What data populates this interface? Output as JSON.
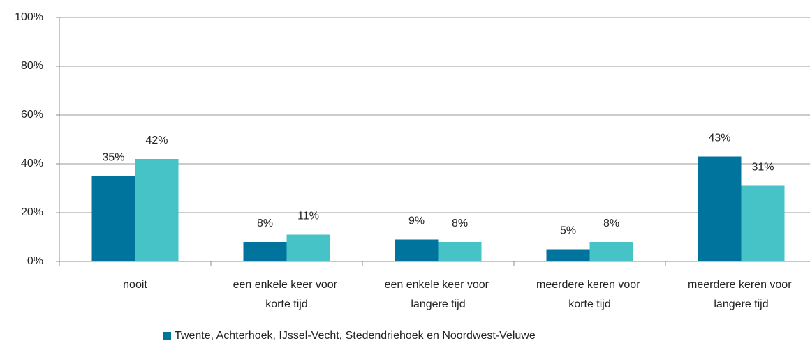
{
  "chart_data": {
    "type": "bar",
    "categories": [
      "nooit",
      "een enkele keer voor korte tijd",
      "een enkele keer voor langere tijd",
      "meerdere keren voor korte tijd",
      "meerdere keren voor langere tijd"
    ],
    "series": [
      {
        "name": "Twente, Achterhoek, IJssel-Vecht, Stedendriehoek en Noordwest-Veluwe",
        "color": "#00749c",
        "values": [
          35,
          8,
          9,
          5,
          43
        ],
        "value_labels": [
          "35%",
          "8%",
          "9%",
          "5%",
          "43%"
        ]
      },
      {
        "color": "#45c3c6",
        "values": [
          42,
          11,
          8,
          8,
          31
        ],
        "value_labels": [
          "42%",
          "11%",
          "8%",
          "8%",
          "31%"
        ]
      }
    ],
    "ylim": [
      0,
      100
    ],
    "yticks": [
      {
        "value": 0,
        "label": "0%"
      },
      {
        "value": 20,
        "label": "20%"
      },
      {
        "value": 40,
        "label": "40%"
      },
      {
        "value": 60,
        "label": "60%"
      },
      {
        "value": 80,
        "label": "80%"
      },
      {
        "value": 100,
        "label": "100%"
      }
    ],
    "grid": true,
    "legend": "bottom"
  }
}
